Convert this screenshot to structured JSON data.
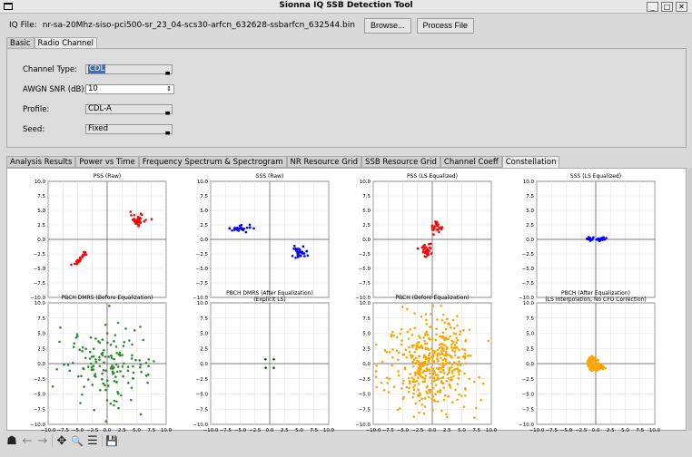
{
  "window": {
    "title": "Sionna IQ SSB Detection Tool",
    "minimize": "_",
    "maximize": "□",
    "close": "✕"
  },
  "file": {
    "label": "IQ File:",
    "value": "nr-sa-20Mhz-siso-pci500-sr_23_04-scs30-arfcn_632628-ssbarfcn_632544.bin",
    "browse": "Browse...",
    "process": "Process File"
  },
  "config_tabs": [
    {
      "label": "Basic"
    },
    {
      "label": "Radio Channel"
    }
  ],
  "channel": {
    "type_label": "Channel Type:",
    "type_value": "CDL",
    "snr_label": "AWGN SNR (dB):",
    "snr_value": "10",
    "profile_label": "Profile:",
    "profile_value": "CDL-A",
    "seed_label": "Seed:",
    "seed_value": "Fixed"
  },
  "result_tabs": [
    {
      "label": "Analysis Results"
    },
    {
      "label": "Power vs Time"
    },
    {
      "label": "Frequency Spectrum & Spectrogram"
    },
    {
      "label": "NR Resource Grid"
    },
    {
      "label": "SSB Resource Grid"
    },
    {
      "label": "Channel Coeff"
    },
    {
      "label": "Constellation"
    }
  ],
  "chart_data": [
    {
      "type": "scatter",
      "title": "PSS (Raw)",
      "color": "#ff0000",
      "xlim": [
        -10,
        10
      ],
      "ylim": [
        -10,
        10
      ],
      "clusters": [
        {
          "x": 5.2,
          "y": 3.3,
          "sx": 0.6,
          "sy": 0.5,
          "n": 35
        },
        {
          "x": -4.5,
          "y": -3.3,
          "sx": 0.9,
          "sy": 0.8,
          "n": 30,
          "line": true
        }
      ]
    },
    {
      "type": "scatter",
      "title": "SSS (Raw)",
      "color": "#0000ff",
      "xlim": [
        -10,
        10
      ],
      "ylim": [
        -10,
        10
      ],
      "clusters": [
        {
          "x": -5,
          "y": 1.8,
          "sx": 1.2,
          "sy": 0.3,
          "n": 30
        },
        {
          "x": 5,
          "y": -2.3,
          "sx": 0.7,
          "sy": 0.6,
          "n": 35
        }
      ]
    },
    {
      "type": "scatter",
      "title": "PSS (LS Equalized)",
      "color": "#ff0000",
      "xlim": [
        -10,
        10
      ],
      "ylim": [
        -10,
        10
      ],
      "clusters": [
        {
          "x": 0.8,
          "y": 2.2,
          "sx": 0.5,
          "sy": 0.6,
          "n": 25
        },
        {
          "x": -1,
          "y": -1.8,
          "sx": 0.6,
          "sy": 0.6,
          "n": 30
        }
      ]
    },
    {
      "type": "scatter",
      "title": "SSS (LS Equalized)",
      "color": "#0000ff",
      "xlim": [
        -10,
        10
      ],
      "ylim": [
        -10,
        10
      ],
      "clusters": [
        {
          "x": -1,
          "y": 0.1,
          "sx": 0.25,
          "sy": 0.15,
          "n": 20
        },
        {
          "x": 1,
          "y": 0.1,
          "sx": 0.25,
          "sy": 0.15,
          "n": 20
        }
      ]
    },
    {
      "type": "scatter",
      "title": "PBCH DMRS (Before Equalization)",
      "color": "#2e8b2e",
      "xlim": [
        -10,
        10
      ],
      "ylim": [
        -10,
        10
      ],
      "clusters": [
        {
          "x": 0,
          "y": 0,
          "sx": 3.5,
          "sy": 3.5,
          "n": 150
        }
      ]
    },
    {
      "type": "scatter",
      "title": "PBCH DMRS (After Equalization)",
      "subtitle": "(Explicit LS)",
      "color": "#006400",
      "xlim": [
        -10,
        10
      ],
      "ylim": [
        -10,
        10
      ],
      "clusters": [
        {
          "x": -0.7,
          "y": 0.7,
          "sx": 0.02,
          "sy": 0.02,
          "n": 1
        },
        {
          "x": 0.7,
          "y": 0.7,
          "sx": 0.02,
          "sy": 0.02,
          "n": 1
        },
        {
          "x": -0.7,
          "y": -0.7,
          "sx": 0.02,
          "sy": 0.02,
          "n": 1
        },
        {
          "x": 0.7,
          "y": -0.7,
          "sx": 0.02,
          "sy": 0.02,
          "n": 1
        }
      ]
    },
    {
      "type": "scatter",
      "title": "PBCH (Before Equalization)",
      "color": "#ffa500",
      "xlim": [
        -10,
        10
      ],
      "ylim": [
        -10,
        10
      ],
      "clusters": [
        {
          "x": 0,
          "y": 0,
          "sx": 3.6,
          "sy": 3.6,
          "n": 450
        }
      ]
    },
    {
      "type": "scatter",
      "title": "PBCH (After Equalization)",
      "subtitle": "(LS Interpolation, No CFO Correction)",
      "color": "#ffa500",
      "xlim": [
        -10,
        10
      ],
      "ylim": [
        -10,
        10
      ],
      "clusters": [
        {
          "x": -0.6,
          "y": 0.6,
          "sx": 0.35,
          "sy": 0.3,
          "n": 60
        },
        {
          "x": -0.6,
          "y": -0.6,
          "sx": 0.35,
          "sy": 0.3,
          "n": 60
        },
        {
          "x": 0.6,
          "y": -0.6,
          "sx": 0.35,
          "sy": 0.3,
          "n": 40
        }
      ]
    }
  ],
  "tick_labels": [
    "−10.0",
    "−7.5",
    "−5.0",
    "−2.5",
    "0.0",
    "2.5",
    "5.0",
    "7.5",
    "10.0"
  ],
  "toolbar": {
    "home": "☗",
    "back": "←",
    "forward": "→",
    "pan": "✥",
    "zoom": "🔍",
    "configure": "☰",
    "save": "💾"
  }
}
